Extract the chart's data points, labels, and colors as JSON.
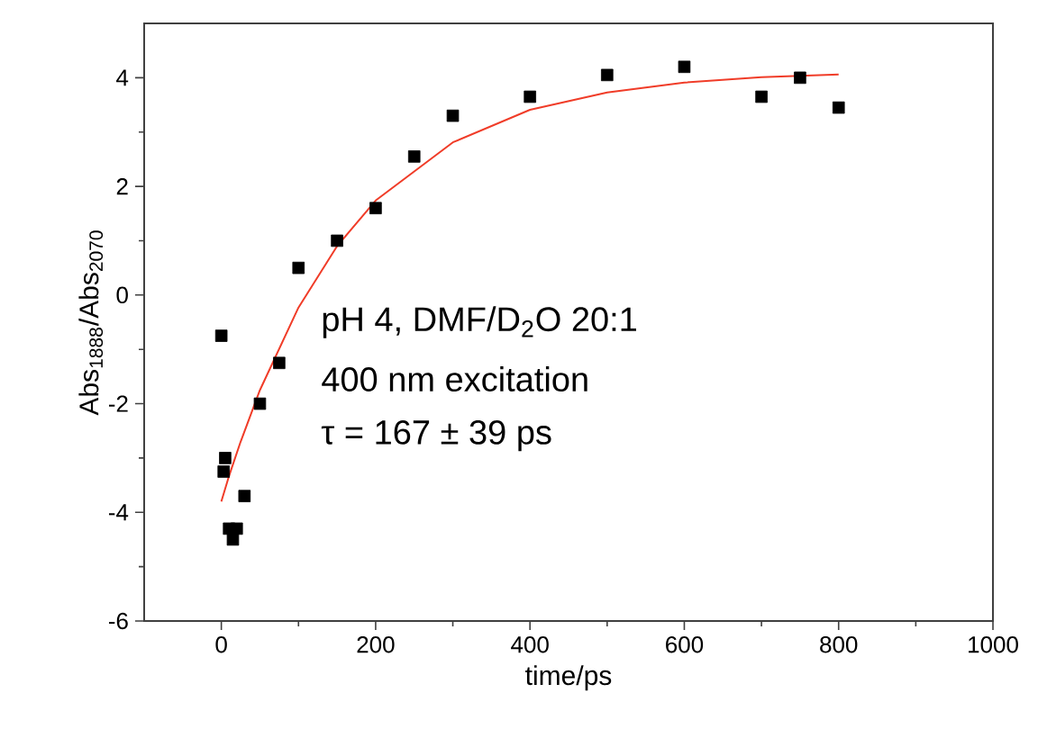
{
  "chart_data": {
    "type": "scatter",
    "xlabel": "time/ps",
    "ylabel": "Abs$_{1888}$/Abs$_{2070}$",
    "annotations": [
      "pH 4, DMF/D$_{2}$O 20:1",
      "400 nm excitation",
      "τ = 167 ± 39 ps"
    ],
    "xlim": [
      -100,
      1000
    ],
    "xticks": [
      0,
      200,
      400,
      600,
      800,
      1000
    ],
    "ylim": [
      -6,
      5
    ],
    "yticks": [
      -6,
      -4,
      -2,
      0,
      2,
      4
    ],
    "series": [
      {
        "marker": "square",
        "color": "#000000",
        "x": [
          0,
          3,
          5,
          10,
          15,
          20,
          30,
          50,
          75,
          100,
          150,
          200,
          250,
          300,
          400,
          500,
          600,
          700,
          750,
          800
        ],
        "values": [
          -0.75,
          -3.25,
          -3.0,
          -4.3,
          -4.5,
          -4.3,
          -3.7,
          -2.0,
          -1.25,
          0.5,
          1.0,
          1.6,
          2.55,
          3.3,
          3.65,
          4.05,
          4.2,
          3.65,
          4.0,
          3.45
        ]
      },
      {
        "type": "line",
        "marker": "none",
        "color": "#f03c28",
        "x": [
          0,
          10,
          25,
          50,
          100,
          150,
          200,
          300,
          400,
          500,
          600,
          700,
          800
        ],
        "values": [
          -3.8,
          -3.33,
          -2.7,
          -1.75,
          -0.23,
          0.9,
          1.74,
          2.81,
          3.41,
          3.73,
          3.91,
          4.01,
          4.06
        ]
      }
    ]
  }
}
